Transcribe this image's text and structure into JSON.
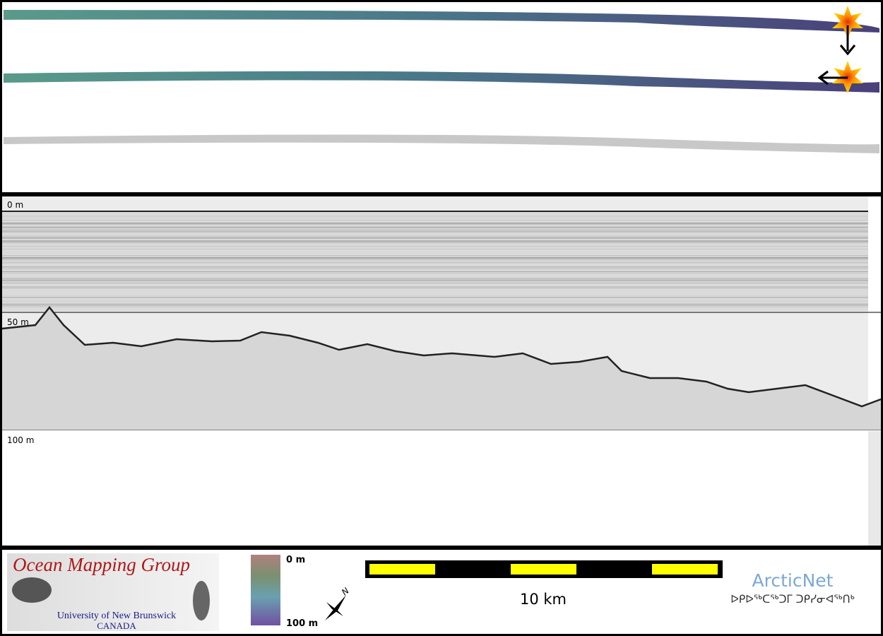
{
  "profile": {
    "depth_labels": [
      "0 m",
      "50 m",
      "100 m"
    ]
  },
  "legend": {
    "top": "0 m",
    "bottom": "100 m"
  },
  "scale_bar": {
    "label": "10 km"
  },
  "compass": {
    "label": "N"
  },
  "logos": {
    "omg": {
      "title": "Ocean Mapping Group",
      "university": "University of New Brunswick",
      "country": "CANADA"
    },
    "arcticnet": {
      "name": "ArcticNet",
      "syllabics": "ᐅᑭᐅᖅᑕᖅᑐᒥ ᑐᑭᓯᓂᐊᖅᑎᒃ"
    }
  }
}
